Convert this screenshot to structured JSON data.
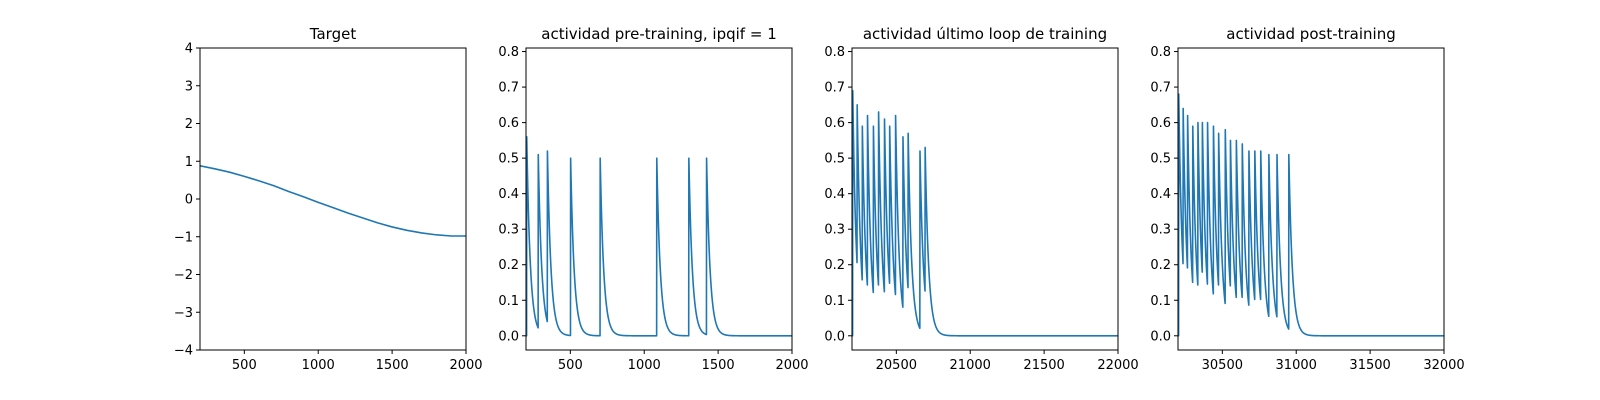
{
  "chart_data": [
    {
      "type": "line",
      "title": "Target",
      "xlim": [
        200,
        2000
      ],
      "ylim": [
        -4,
        4
      ],
      "xticks": [
        500,
        1000,
        1500,
        2000
      ],
      "yticks": [
        -4,
        -3,
        -2,
        -1,
        0,
        1,
        2,
        3,
        4
      ],
      "line_color": "#1f77b4",
      "series": [
        {
          "x": [
            200,
            300,
            400,
            500,
            600,
            700,
            800,
            900,
            1000,
            1100,
            1200,
            1300,
            1400,
            1500,
            1600,
            1700,
            1800,
            1900,
            2000
          ],
          "y": [
            0.88,
            0.8,
            0.71,
            0.6,
            0.48,
            0.35,
            0.2,
            0.06,
            -0.09,
            -0.23,
            -0.37,
            -0.5,
            -0.63,
            -0.74,
            -0.83,
            -0.9,
            -0.95,
            -0.98,
            -0.98
          ]
        }
      ]
    },
    {
      "type": "line",
      "title": "actividad pre-training, ipqif = 1",
      "xlim": [
        200,
        2000
      ],
      "ylim": [
        -0.04,
        0.81
      ],
      "xticks": [
        500,
        1000,
        1500,
        2000
      ],
      "yticks": [
        0.0,
        0.1,
        0.2,
        0.3,
        0.4,
        0.5,
        0.6,
        0.7,
        0.8
      ],
      "line_color": "#1f77b4",
      "series": [
        {
          "spike_times": [
            205,
            283,
            345,
            502,
            702,
            1085,
            1302,
            1422
          ],
          "spike_peaks": [
            0.56,
            0.51,
            0.52,
            0.5,
            0.5,
            0.5,
            0.5,
            0.5
          ],
          "decay_tau": 24,
          "baseline": 0.0
        }
      ]
    },
    {
      "type": "line",
      "title": "actividad último loop de training",
      "xlim": [
        20200,
        22000
      ],
      "ylim": [
        -0.04,
        0.81
      ],
      "xticks": [
        20500,
        21000,
        21500,
        22000
      ],
      "yticks": [
        0.0,
        0.1,
        0.2,
        0.3,
        0.4,
        0.5,
        0.6,
        0.7,
        0.8
      ],
      "line_color": "#1f77b4",
      "series": [
        {
          "spike_times": [
            20205,
            20235,
            20270,
            20305,
            20345,
            20380,
            20420,
            20455,
            20495,
            20545,
            20580,
            20660,
            20695
          ],
          "spike_peaks": [
            0.69,
            0.65,
            0.59,
            0.62,
            0.59,
            0.63,
            0.61,
            0.59,
            0.62,
            0.56,
            0.57,
            0.52,
            0.53
          ],
          "decay_tau": 24,
          "baseline": 0.0
        }
      ]
    },
    {
      "type": "line",
      "title": "actividad post-training",
      "xlim": [
        30200,
        32000
      ],
      "ylim": [
        -0.04,
        0.81
      ],
      "xticks": [
        30500,
        31000,
        31500,
        32000
      ],
      "yticks": [
        0.0,
        0.1,
        0.2,
        0.3,
        0.4,
        0.5,
        0.6,
        0.7,
        0.8
      ],
      "line_color": "#1f77b4",
      "series": [
        {
          "spike_times": [
            30205,
            30235,
            30265,
            30300,
            30335,
            30365,
            30400,
            30440,
            30475,
            30520,
            30555,
            30595,
            30635,
            30680,
            30720,
            30760,
            30815,
            30870,
            30950
          ],
          "spike_peaks": [
            0.68,
            0.64,
            0.62,
            0.59,
            0.6,
            0.6,
            0.6,
            0.59,
            0.57,
            0.58,
            0.55,
            0.55,
            0.54,
            0.52,
            0.52,
            0.52,
            0.51,
            0.51,
            0.51
          ],
          "decay_tau": 24,
          "baseline": 0.0
        }
      ]
    }
  ]
}
